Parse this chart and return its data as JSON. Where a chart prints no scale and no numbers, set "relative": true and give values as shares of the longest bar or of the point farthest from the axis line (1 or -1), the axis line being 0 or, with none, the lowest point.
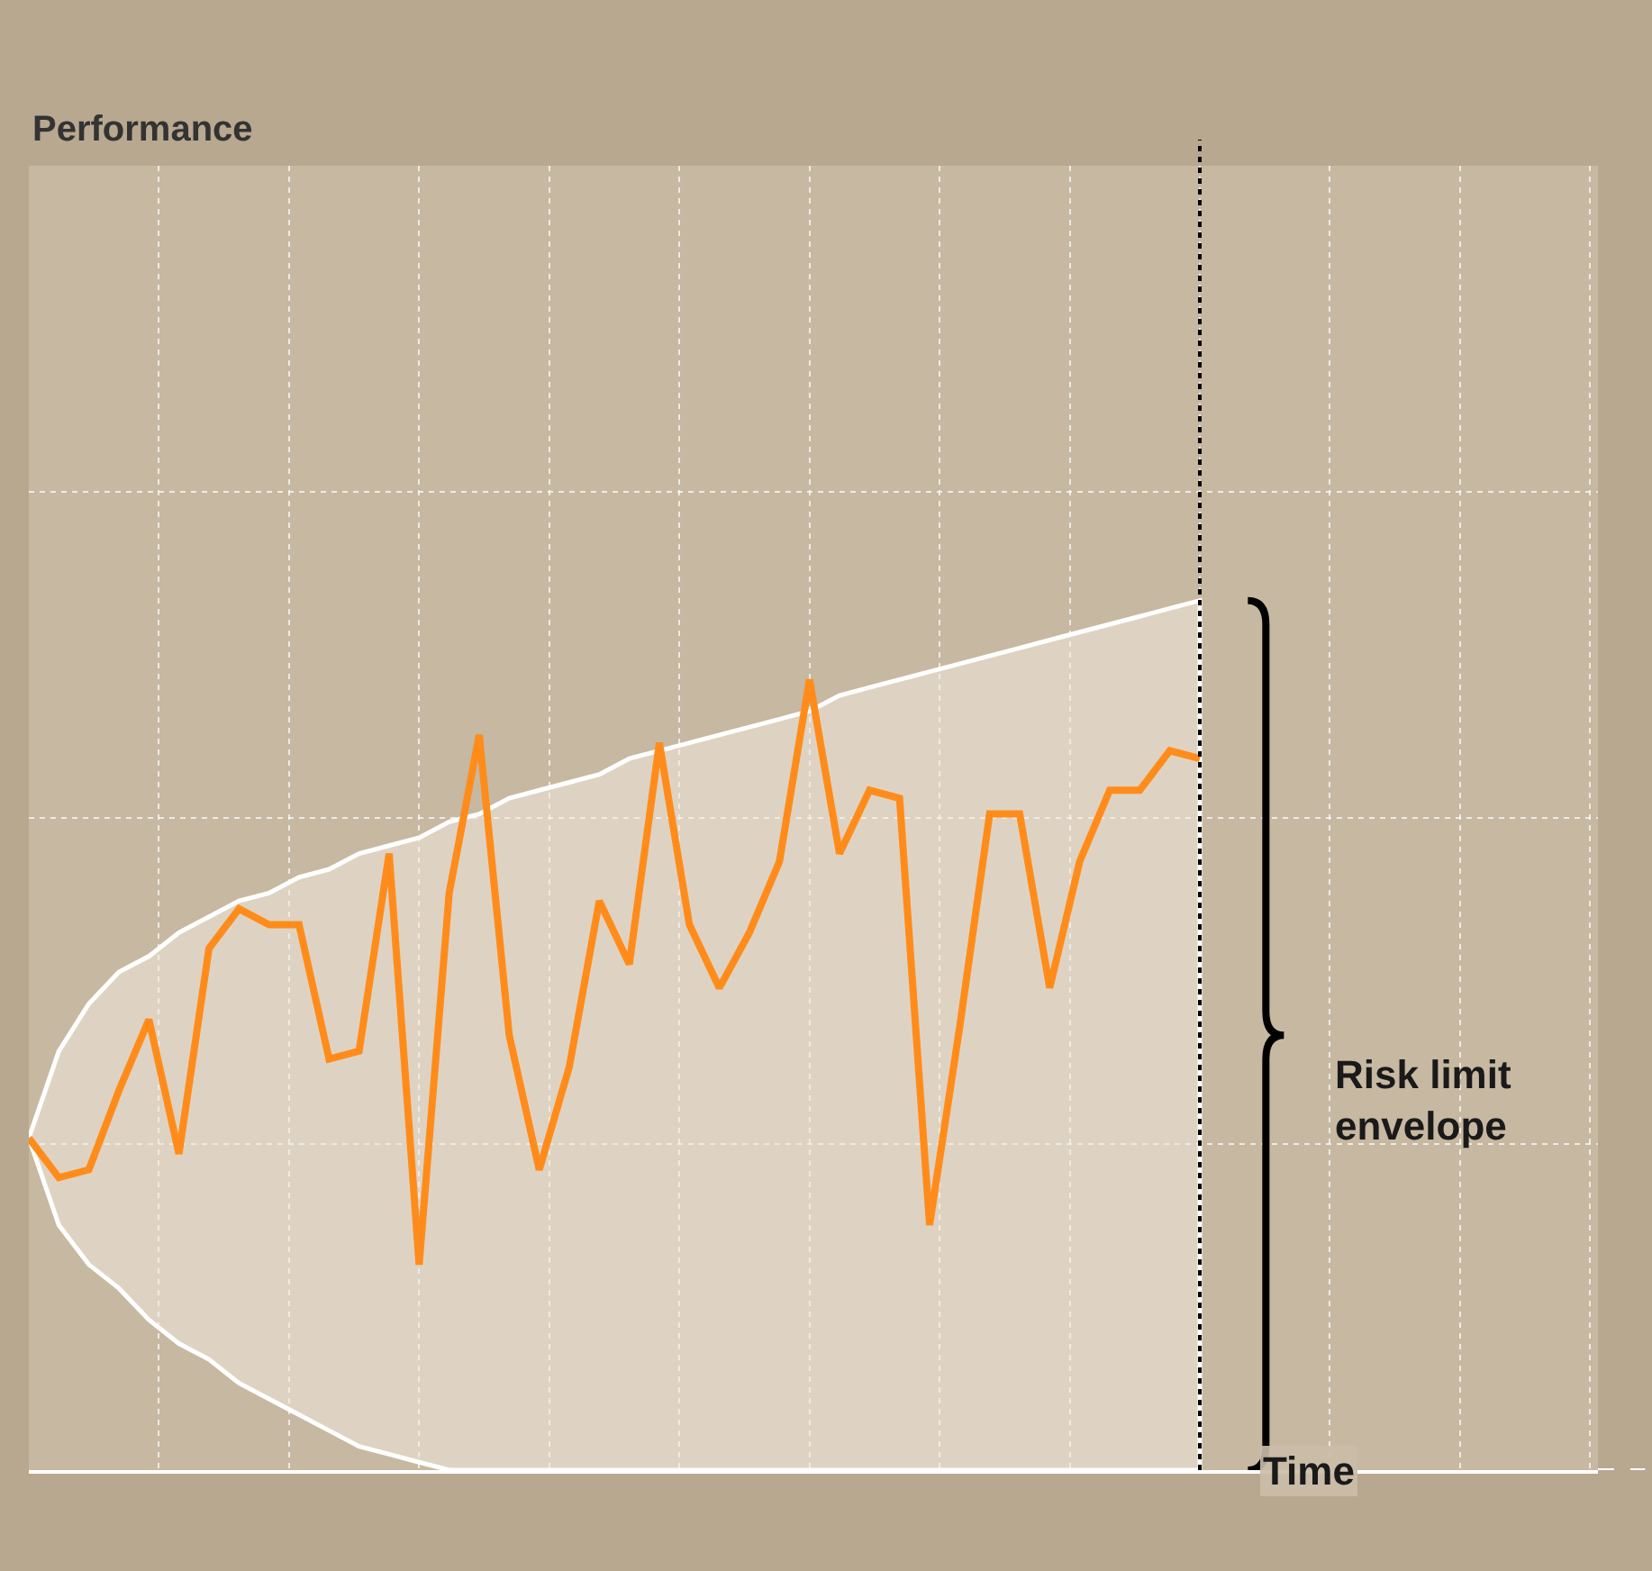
{
  "chart_data": {
    "type": "line",
    "relative": true,
    "xlabel": "Time",
    "categories": [
      null,
      null,
      null,
      null,
      null,
      null,
      null,
      null,
      null,
      null,
      null,
      null,
      null,
      null,
      null,
      null,
      null,
      null,
      null,
      null,
      null,
      null,
      null,
      null,
      null,
      null,
      null,
      null,
      null,
      null,
      null,
      null,
      null,
      null,
      null,
      null,
      null,
      null,
      null,
      null
    ],
    "series": [
      {
        "color": "#ff8c1a",
        "values": [
          0.42,
          0.37,
          0.38,
          0.48,
          0.57,
          0.4,
          0.66,
          0.71,
          0.69,
          0.69,
          0.52,
          0.53,
          0.78,
          0.26,
          0.73,
          0.93,
          0.55,
          0.38,
          0.51,
          0.72,
          0.64,
          0.92,
          0.69,
          0.61,
          0.68,
          0.77,
          1.0,
          0.78,
          0.86,
          0.85,
          0.31,
          0.56,
          0.83,
          0.83,
          0.61,
          0.77,
          0.86,
          0.86,
          0.91,
          0.9
        ],
        "upper": [
          0.42,
          0.53,
          0.59,
          0.63,
          0.65,
          0.68,
          0.7,
          0.72,
          0.73,
          0.75,
          0.76,
          0.78,
          0.79,
          0.8,
          0.82,
          0.83,
          0.85,
          0.86,
          0.87,
          0.88,
          0.9,
          0.91,
          0.92,
          0.93,
          0.94,
          0.95,
          0.96,
          0.98,
          0.99,
          1.0,
          1.01,
          1.02,
          1.03,
          1.04,
          1.05,
          1.06,
          1.07,
          1.08,
          1.09,
          1.1
        ],
        "lower": [
          0.42,
          0.31,
          0.26,
          0.23,
          0.19,
          0.16,
          0.14,
          0.11,
          0.09,
          0.07,
          0.05,
          0.03,
          0.02,
          0.01,
          0,
          0,
          0,
          0,
          0,
          0,
          0,
          0,
          0,
          0,
          0,
          0,
          0,
          0,
          0,
          0,
          0,
          0,
          0,
          0,
          0,
          0,
          0,
          0,
          0,
          0
        ]
      }
    ],
    "annotations": [
      "Performance",
      "Risk limit envelope"
    ],
    "grid": true,
    "tick_labels": false,
    "marker": "none",
    "line_style": "solid"
  }
}
